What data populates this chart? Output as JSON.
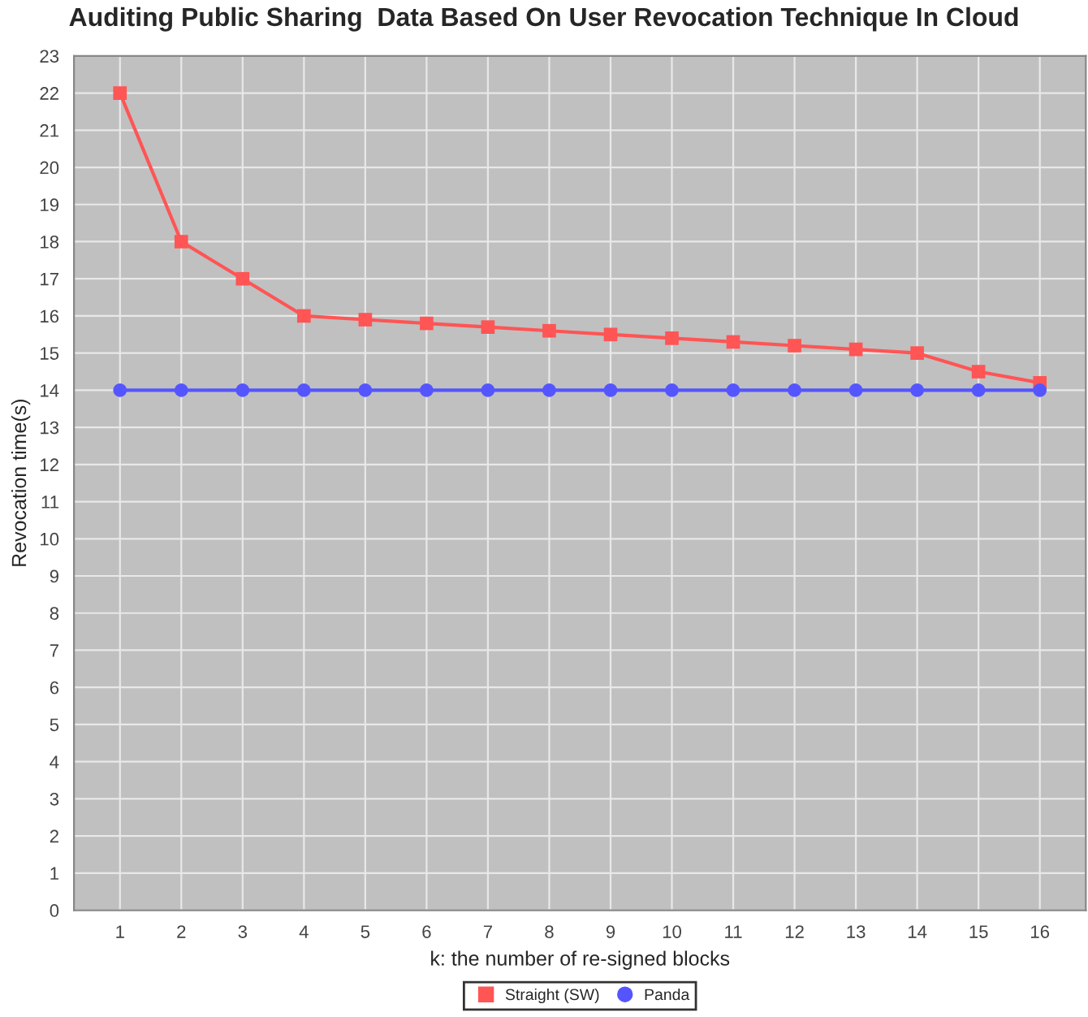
{
  "chart_data": {
    "type": "line",
    "title": "Auditing Public Sharing  Data Based On User Revocation Technique In Cloud",
    "xlabel": "k: the number of re-signed blocks",
    "ylabel": "Revocation time(s)",
    "categories": [
      "1",
      "2",
      "3",
      "4",
      "5",
      "6",
      "7",
      "8",
      "9",
      "10",
      "11",
      "12",
      "13",
      "14",
      "15",
      "16"
    ],
    "series": [
      {
        "name": "Straight (SW)",
        "color": "#ff5555",
        "marker": "square",
        "values": [
          22,
          18,
          17,
          16,
          15.9,
          15.8,
          15.7,
          15.6,
          15.5,
          15.4,
          15.3,
          15.2,
          15.1,
          15,
          14.5,
          14.2
        ]
      },
      {
        "name": "Panda",
        "color": "#5555ff",
        "marker": "circle",
        "values": [
          14,
          14,
          14,
          14,
          14,
          14,
          14,
          14,
          14,
          14,
          14,
          14,
          14,
          14,
          14,
          14
        ]
      }
    ],
    "ylim": [
      0,
      23
    ],
    "yticks": [
      0,
      1,
      2,
      3,
      4,
      5,
      6,
      7,
      8,
      9,
      10,
      11,
      12,
      13,
      14,
      15,
      16,
      17,
      18,
      19,
      20,
      21,
      22,
      23
    ],
    "grid": true,
    "legend": "bottom",
    "line_style": "solid"
  }
}
